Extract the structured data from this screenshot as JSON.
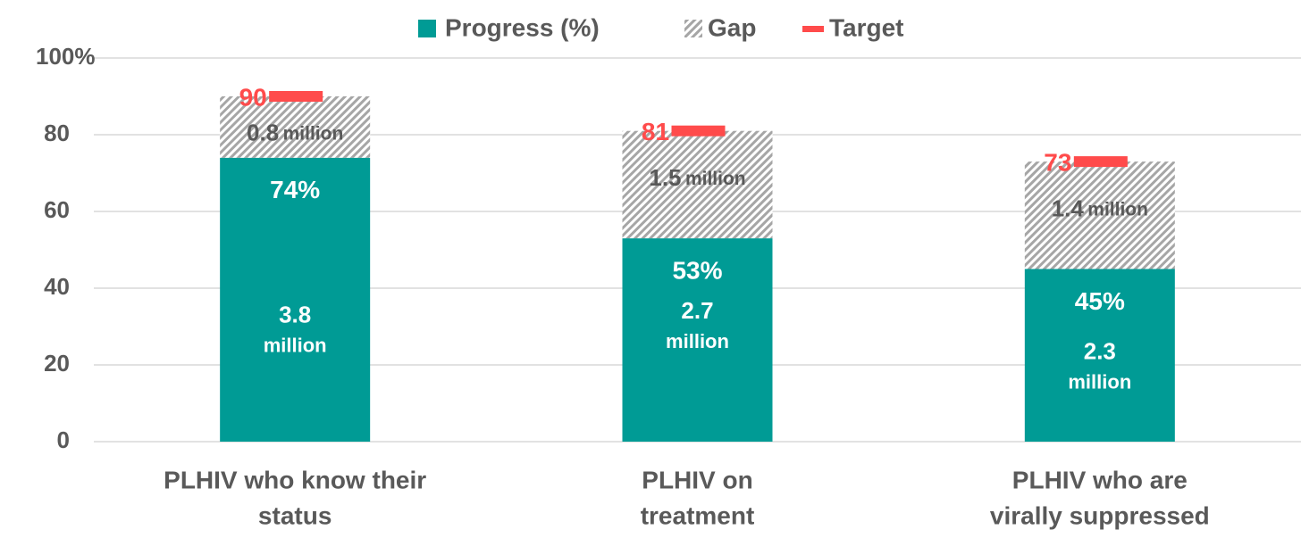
{
  "chart_data": {
    "type": "stacked_bar",
    "categories": [
      [
        "PLHIV who know their",
        "status"
      ],
      [
        "PLHIV on",
        "treatment"
      ],
      [
        "PLHIV who are",
        "virally suppressed"
      ]
    ],
    "series": [
      {
        "name": "Progress (%)",
        "color": "#009b95",
        "values": [
          74,
          53,
          45
        ],
        "value_labels": [
          "74%",
          "53%",
          "45%"
        ]
      },
      {
        "name": "Gap",
        "color": "#a6a6a6",
        "values": [
          16,
          28,
          28
        ]
      }
    ],
    "target": {
      "name": "Target",
      "color": "#ff4b4b",
      "values": [
        90,
        81,
        73
      ]
    },
    "progress_counts": [
      {
        "count": "3.8",
        "unit": "million"
      },
      {
        "count": "2.7",
        "unit": "million"
      },
      {
        "count": "2.3",
        "unit": "million"
      }
    ],
    "gap_counts": [
      {
        "count": "0.8",
        "unit": "million"
      },
      {
        "count": "1.5",
        "unit": "million"
      },
      {
        "count": "1.4",
        "unit": "million"
      }
    ],
    "ylim": [
      0,
      100
    ],
    "yticks": [
      0,
      20,
      40,
      60,
      80,
      {
        "value": 100,
        "label": "100%"
      }
    ],
    "grid": true
  }
}
